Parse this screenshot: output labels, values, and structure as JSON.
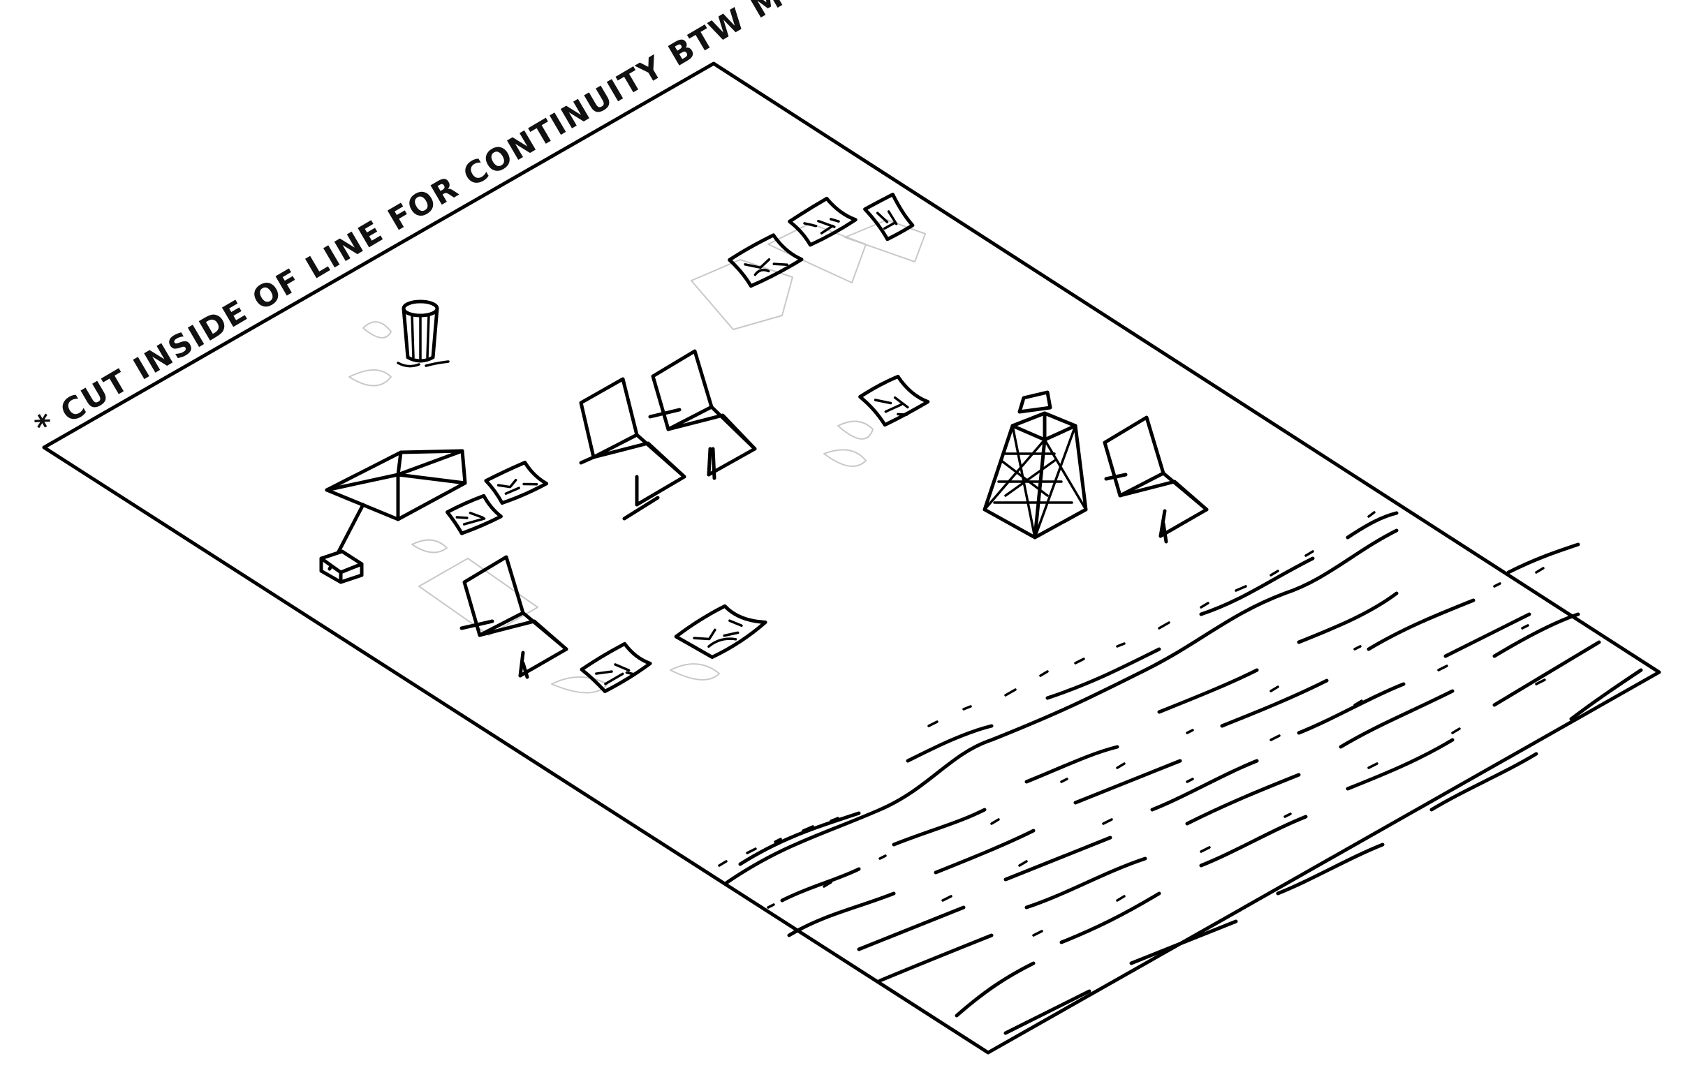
{
  "diagram": {
    "title": "",
    "annotation": "* CUT INSIDE OF LINE FOR CONTINUITY BTW MODULES",
    "line_color": "#000000",
    "ghost_color": "#c8c8c8",
    "background": "#ffffff",
    "elements": [
      {
        "name": "module-border",
        "icon": "isometric-rectangle-outline"
      },
      {
        "name": "beach-umbrella",
        "icon": "umbrella-icon"
      },
      {
        "name": "trash-can",
        "icon": "trash-can-icon"
      },
      {
        "name": "lifeguard-tower",
        "icon": "lifeguard-tower-icon"
      },
      {
        "name": "lounge-chairs",
        "icon": "lounge-chair-icon",
        "count": 4
      },
      {
        "name": "beach-towels",
        "icon": "towel-icon",
        "count": 9
      },
      {
        "name": "ocean-waves",
        "icon": "wave-lines-icon"
      }
    ]
  }
}
